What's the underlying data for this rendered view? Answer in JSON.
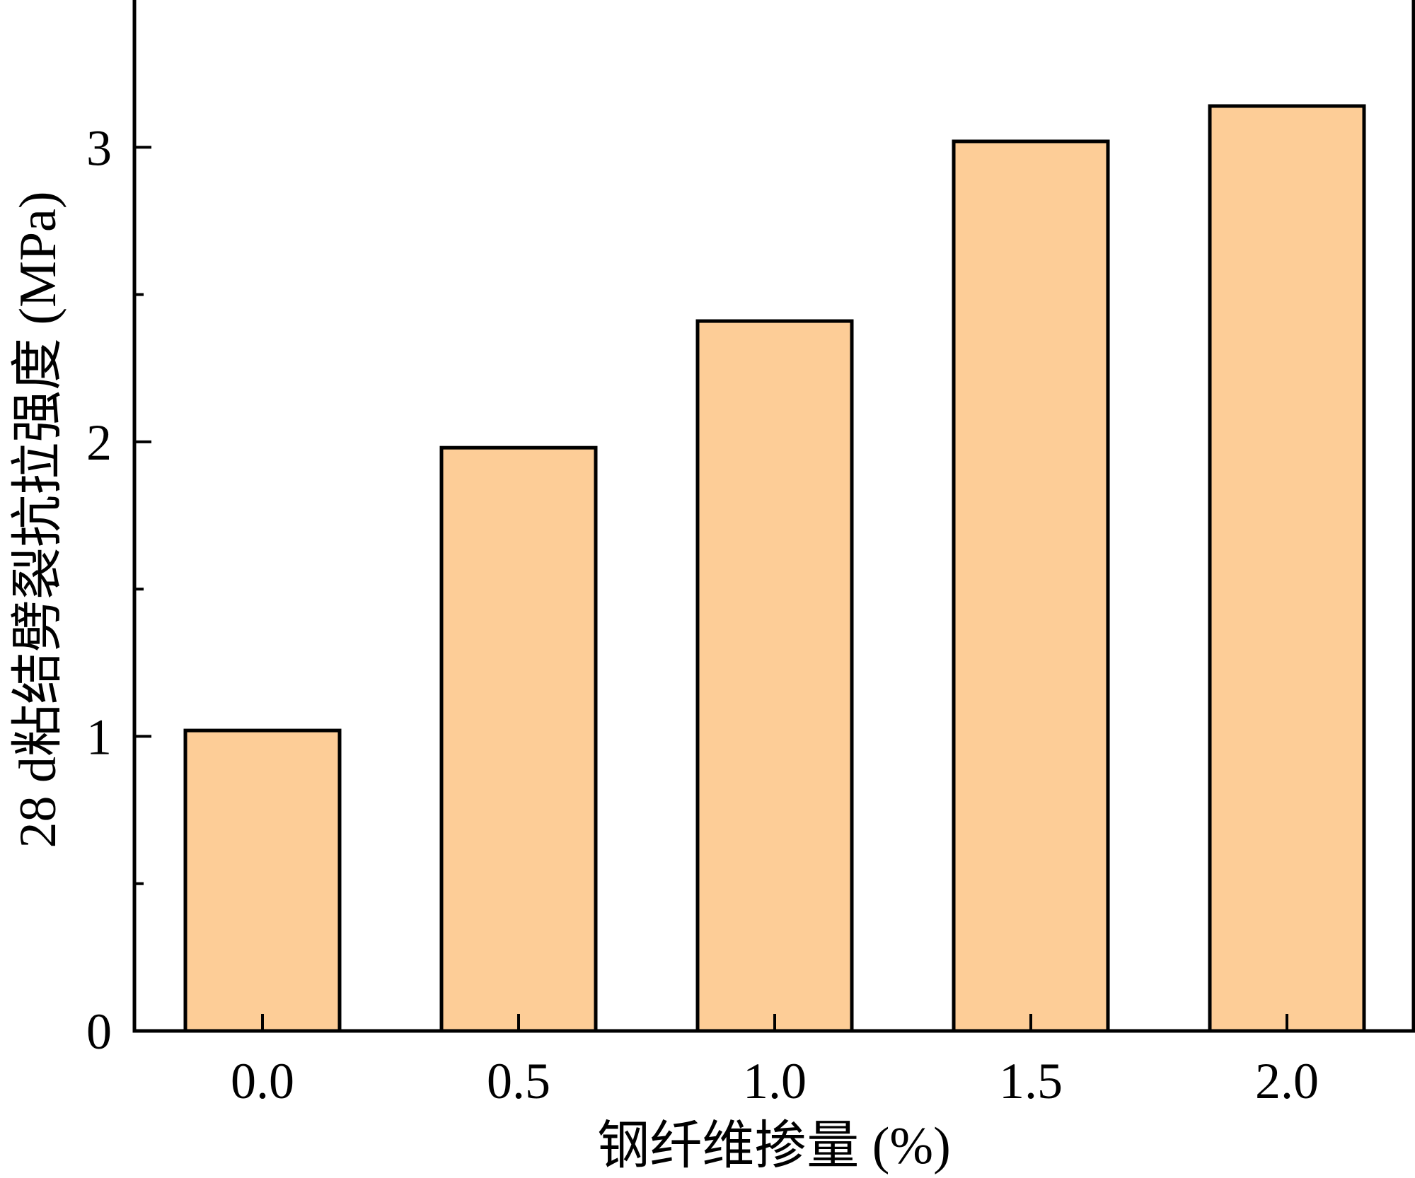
{
  "chart_data": {
    "type": "bar",
    "categories": [
      "0.0",
      "0.5",
      "1.0",
      "1.5",
      "2.0"
    ],
    "values": [
      1.02,
      1.98,
      2.41,
      3.02,
      3.14
    ],
    "xlabel": "钢纤维掺量 (%)",
    "ylabel": "28 d粘结劈裂抗拉强度 (MPa)",
    "ylim": [
      0,
      3.5
    ],
    "yticks": [
      0,
      1,
      2,
      3
    ],
    "yticks_labels": [
      "0",
      "1",
      "2",
      "3"
    ],
    "ytick_minor": [
      0.5,
      1.5,
      2.5
    ],
    "grid": false,
    "bar_color": "#fdcd97",
    "edge_color": "#000000"
  }
}
